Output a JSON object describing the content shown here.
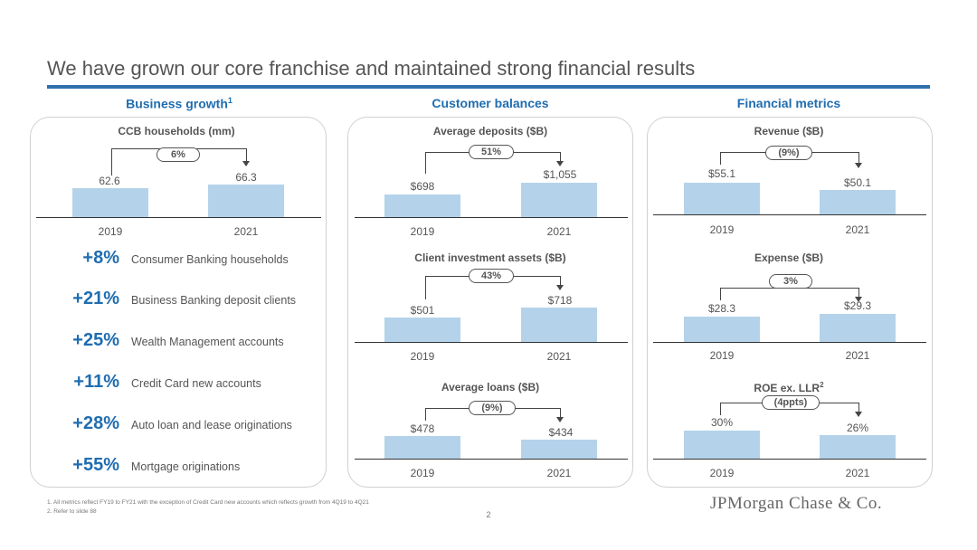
{
  "slide": {
    "title": "We have grown our core franchise and maintained strong financial results",
    "page_number": "2",
    "logo_text": "JPMorgan Chase & Co."
  },
  "columns": {
    "business_growth": "Business growth",
    "business_growth_sup": "1",
    "customer_balances": "Customer balances",
    "financial_metrics": "Financial metrics"
  },
  "charts": {
    "households": {
      "title": "CCB households (mm)",
      "change": "6%",
      "v2019": "62.6",
      "v2021": "66.3",
      "y2019": "2019",
      "y2021": "2021"
    },
    "deposits": {
      "title": "Average deposits ($B)",
      "change": "51%",
      "v2019": "$698",
      "v2021": "$1,055",
      "y2019": "2019",
      "y2021": "2021"
    },
    "investments": {
      "title": "Client investment assets ($B)",
      "change": "43%",
      "v2019": "$501",
      "v2021": "$718",
      "y2019": "2019",
      "y2021": "2021"
    },
    "loans": {
      "title": "Average loans ($B)",
      "change": "(9%)",
      "v2019": "$478",
      "v2021": "$434",
      "y2019": "2019",
      "y2021": "2021"
    },
    "revenue": {
      "title": "Revenue ($B)",
      "change": "(9%)",
      "v2019": "$55.1",
      "v2021": "$50.1",
      "y2019": "2019",
      "y2021": "2021"
    },
    "expense": {
      "title": "Expense ($B)",
      "change": "3%",
      "v2019": "$28.3",
      "v2021": "$29.3",
      "y2019": "2019",
      "y2021": "2021"
    },
    "roe": {
      "title": "ROE ex. LLR",
      "title_sup": "2",
      "change": "(4ppts)",
      "v2019": "30%",
      "v2021": "26%",
      "y2019": "2019",
      "y2021": "2021"
    }
  },
  "chart_data": [
    {
      "type": "bar",
      "title": "CCB households (mm)",
      "categories": [
        "2019",
        "2021"
      ],
      "values": [
        62.6,
        66.3
      ],
      "change": "6%"
    },
    {
      "type": "bar",
      "title": "Average deposits ($B)",
      "categories": [
        "2019",
        "2021"
      ],
      "values": [
        698,
        1055
      ],
      "change": "51%"
    },
    {
      "type": "bar",
      "title": "Client investment assets ($B)",
      "categories": [
        "2019",
        "2021"
      ],
      "values": [
        501,
        718
      ],
      "change": "43%"
    },
    {
      "type": "bar",
      "title": "Average loans ($B)",
      "categories": [
        "2019",
        "2021"
      ],
      "values": [
        478,
        434
      ],
      "change": "(9%)"
    },
    {
      "type": "bar",
      "title": "Revenue ($B)",
      "categories": [
        "2019",
        "2021"
      ],
      "values": [
        55.1,
        50.1
      ],
      "change": "(9%)"
    },
    {
      "type": "bar",
      "title": "Expense ($B)",
      "categories": [
        "2019",
        "2021"
      ],
      "values": [
        28.3,
        29.3
      ],
      "change": "3%"
    },
    {
      "type": "bar",
      "title": "ROE ex. LLR",
      "categories": [
        "2019",
        "2021"
      ],
      "values": [
        30,
        26
      ],
      "change": "(4ppts)"
    }
  ],
  "growth_metrics": [
    {
      "pct": "+8%",
      "label": "Consumer Banking households"
    },
    {
      "pct": "+21%",
      "label": "Business Banking deposit clients"
    },
    {
      "pct": "+25%",
      "label": "Wealth Management accounts"
    },
    {
      "pct": "+11%",
      "label": "Credit Card new accounts"
    },
    {
      "pct": "+28%",
      "label": "Auto loan and lease originations"
    },
    {
      "pct": "+55%",
      "label": "Mortgage originations"
    }
  ],
  "footnotes": [
    "1.    All metrics reflect FY19 to FY21 with the exception of Credit Card new accounts which reflects growth from 4Q19 to 4Q21",
    "2.    Refer to slide 88"
  ],
  "colors": {
    "accent": "#1f6db0",
    "rule": "#2f6fab",
    "bar": "#b4d3ea"
  }
}
